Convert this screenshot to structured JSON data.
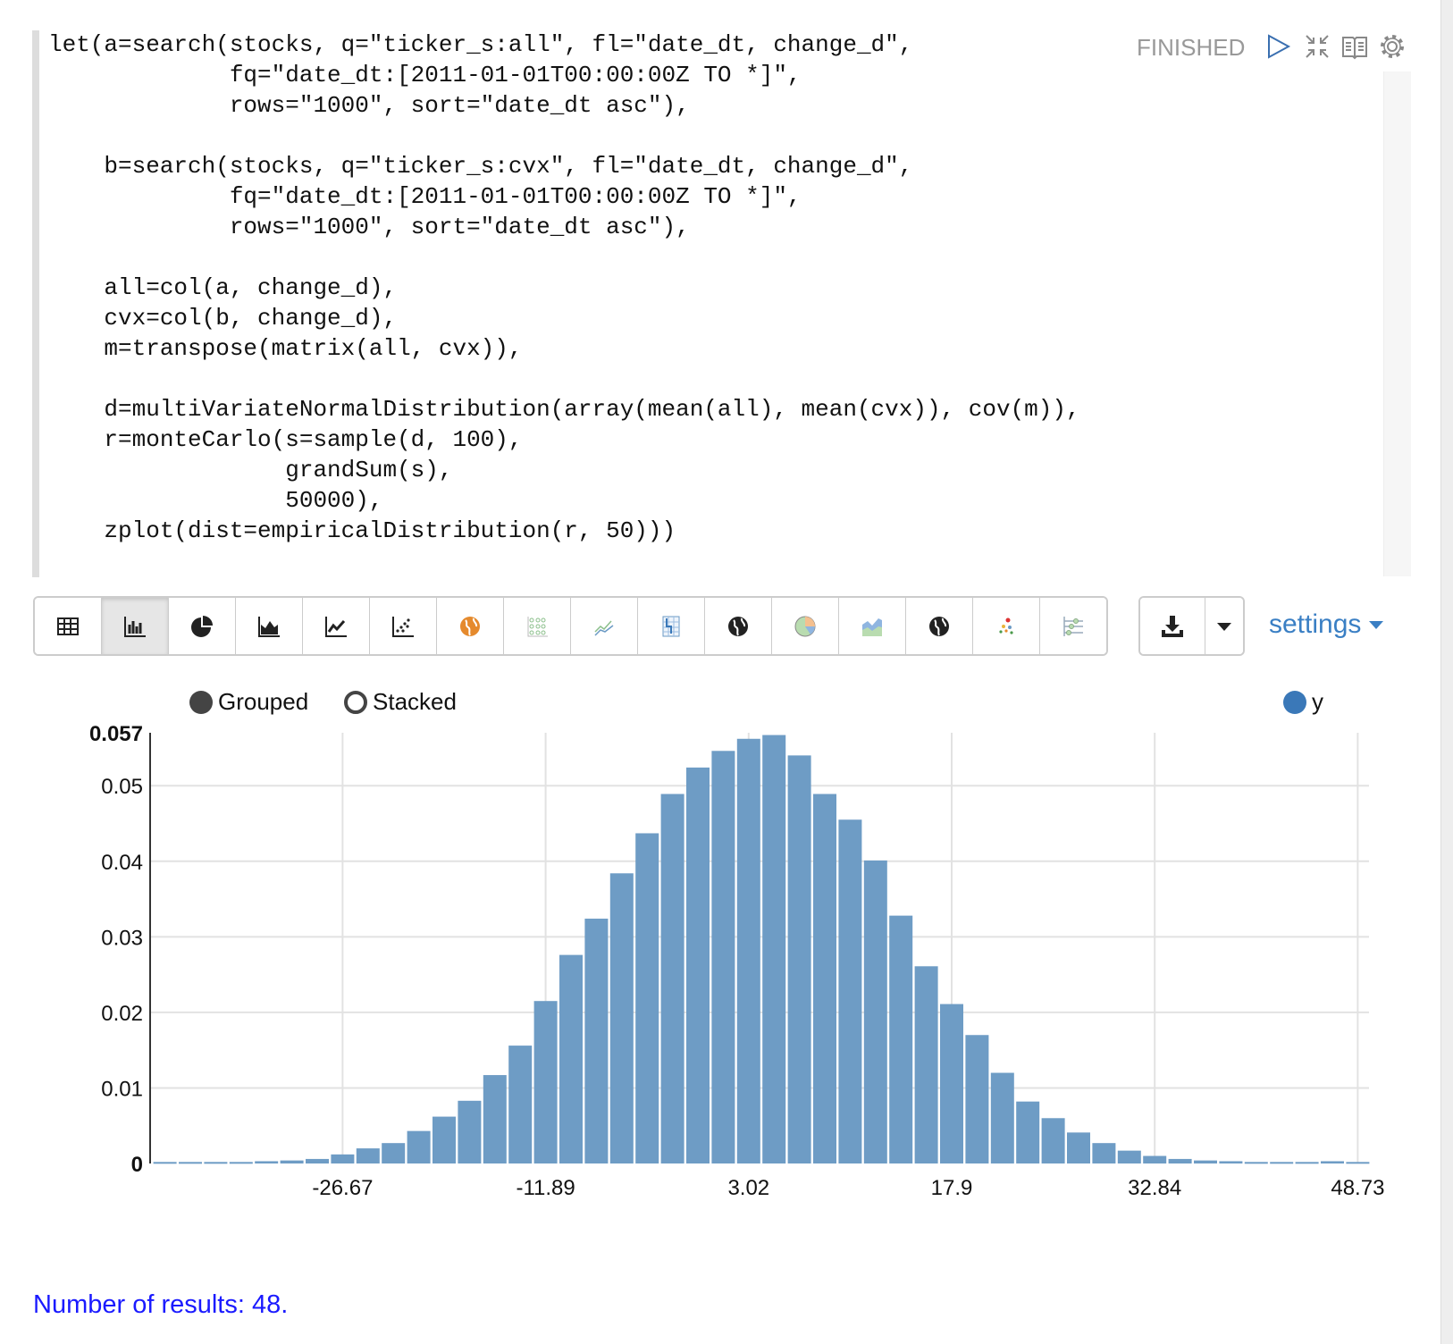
{
  "paragraph": {
    "status": "FINISHED",
    "code_lines": [
      "let(a=search(stocks, q=\"ticker_s:all\", fl=\"date_dt, change_d\",",
      "             fq=\"date_dt:[2011-01-01T00:00:00Z TO *]\",",
      "             rows=\"1000\", sort=\"date_dt asc\"),",
      "",
      "    b=search(stocks, q=\"ticker_s:cvx\", fl=\"date_dt, change_d\",",
      "             fq=\"date_dt:[2011-01-01T00:00:00Z TO *]\",",
      "             rows=\"1000\", sort=\"date_dt asc\"),",
      "",
      "    all=col(a, change_d),",
      "    cvx=col(b, change_d),",
      "    m=transpose(matrix(all, cvx)),",
      "",
      "    d=multiVariateNormalDistribution(array(mean(all), mean(cvx)), cov(m)),",
      "    r=monteCarlo(s=sample(d, 100),",
      "                 grandSum(s),",
      "                 50000),",
      "    zplot(dist=empiricalDistribution(r, 50)))"
    ],
    "header_icons": [
      "play-icon",
      "collapse-icon",
      "book-icon",
      "gear-icon"
    ]
  },
  "toolbar": {
    "buttons": [
      "table-icon",
      "bar-chart-icon",
      "pie-chart-icon",
      "area-chart-icon",
      "line-chart-icon",
      "scatter-chart-icon",
      "orange-globe-icon",
      "dot-grid-icon",
      "multi-line-icon",
      "heatmap-grid-icon",
      "globe-icon",
      "color-pie-icon",
      "color-area-icon",
      "globe-icon-2",
      "color-scatter-icon",
      "slider-lines-icon"
    ],
    "active": "bar-chart-icon",
    "download_icon": "download-icon",
    "dropdown_icon": "caret-down-icon",
    "settings_label": "settings"
  },
  "legend": {
    "grouped": "Grouped",
    "stacked": "Stacked",
    "series": "y"
  },
  "chart_data": {
    "type": "bar",
    "series": [
      {
        "name": "y",
        "color": "#6b9ac4",
        "values": [
          0.0002,
          0.0002,
          0.0002,
          0.0002,
          0.0003,
          0.0004,
          0.0006,
          0.0012,
          0.002,
          0.0027,
          0.0043,
          0.0062,
          0.0083,
          0.0117,
          0.0156,
          0.0215,
          0.0276,
          0.0324,
          0.0384,
          0.0437,
          0.0489,
          0.0524,
          0.0546,
          0.0562,
          0.0567,
          0.054,
          0.0489,
          0.0455,
          0.0401,
          0.0328,
          0.0261,
          0.0211,
          0.017,
          0.012,
          0.0082,
          0.006,
          0.0041,
          0.0027,
          0.0017,
          0.001,
          0.0006,
          0.0004,
          0.0003,
          0.0002,
          0.0002,
          0.0002,
          0.0003,
          0.0002
        ]
      }
    ],
    "x_ticks": [
      {
        "bin": 8,
        "label": "-26.67"
      },
      {
        "bin": 16,
        "label": "-11.89"
      },
      {
        "bin": 24,
        "label": "3.02"
      },
      {
        "bin": 32,
        "label": "17.9"
      },
      {
        "bin": 40,
        "label": "32.84"
      },
      {
        "bin": 48,
        "label": "48.73"
      }
    ],
    "y_ticks": [
      "0",
      "0.01",
      "0.02",
      "0.03",
      "0.04",
      "0.05"
    ],
    "y_max_label": "0.057",
    "ylim": [
      0,
      0.057
    ],
    "grid": true,
    "legend_position": "top-right"
  },
  "footer": {
    "results": "Number of results: 48."
  }
}
